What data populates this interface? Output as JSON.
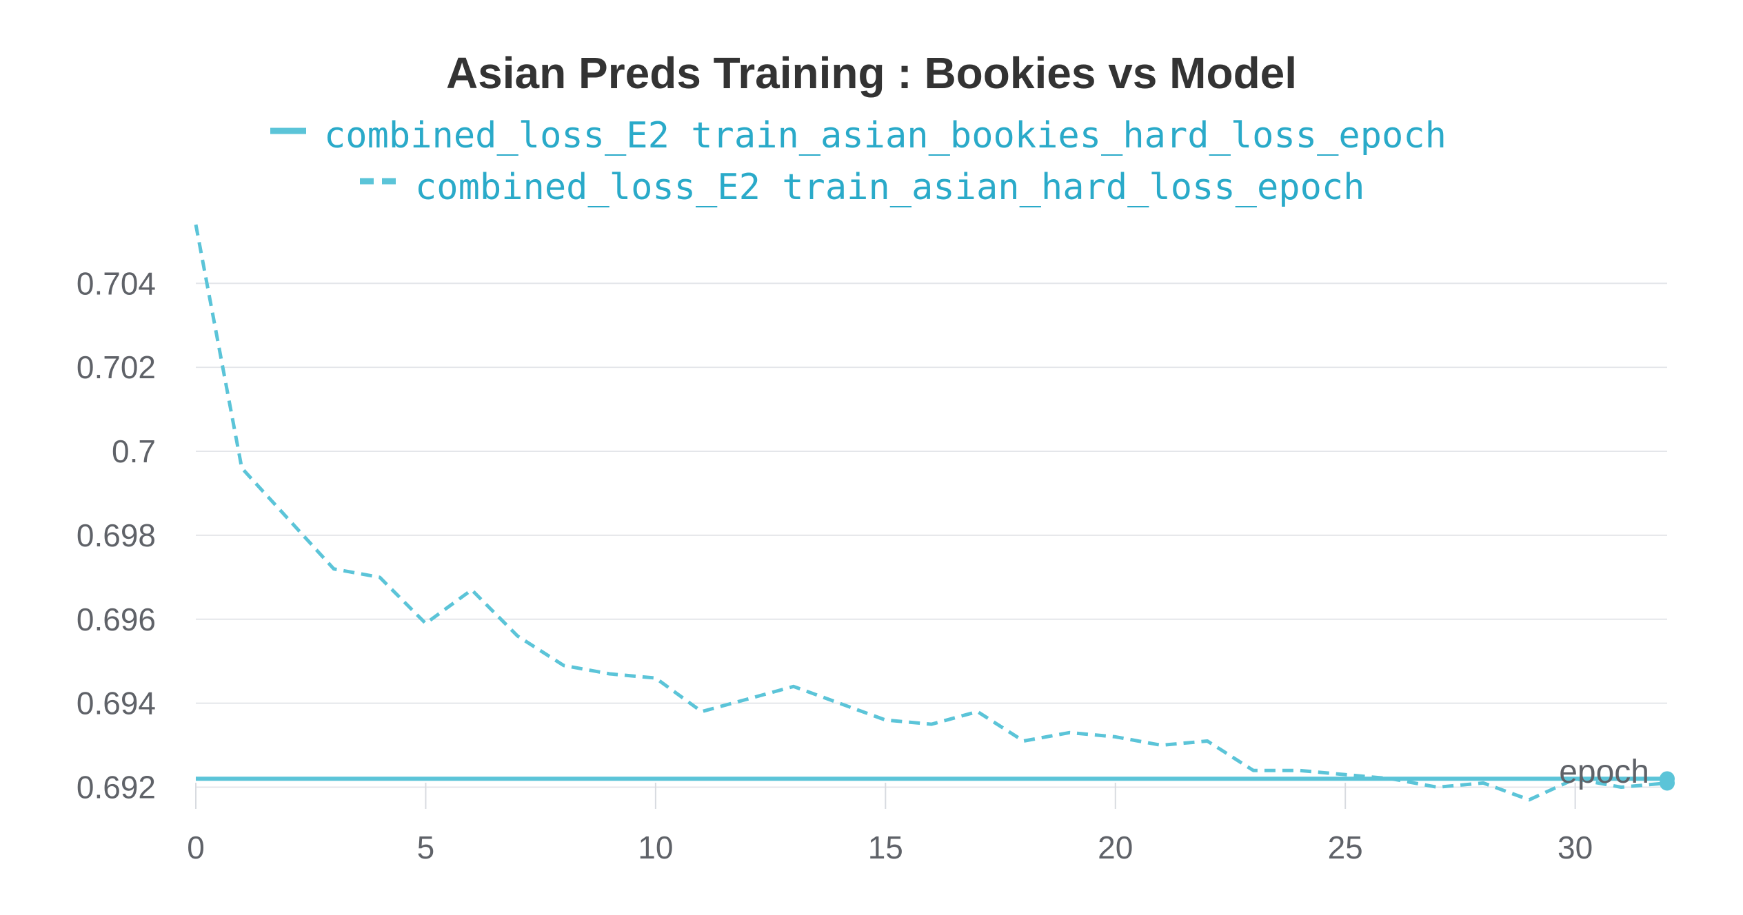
{
  "chart_data": {
    "type": "line",
    "title": "Asian Preds Training : Bookies vs Model",
    "xlabel": "epoch",
    "ylabel": "",
    "xlim": [
      0,
      32
    ],
    "ylim": [
      0.6915,
      0.7054
    ],
    "x_ticks": [
      "0",
      "5",
      "10",
      "15",
      "20",
      "25",
      "30"
    ],
    "y_ticks": [
      "0.704",
      "0.702",
      "0.7",
      "0.698",
      "0.696",
      "0.694",
      "0.692"
    ],
    "grid": true,
    "legend_position": "top-center",
    "series": [
      {
        "name": "combined_loss_E2 train_asian_bookies_hard_loss_epoch",
        "style": "solid",
        "color": "#5bc4d8",
        "x": [
          0,
          32
        ],
        "y": [
          0.6922,
          0.6922
        ]
      },
      {
        "name": "combined_loss_E2 train_asian_hard_loss_epoch",
        "style": "dashed",
        "color": "#5bc4d8",
        "x": [
          0,
          1,
          2,
          3,
          4,
          5,
          6,
          7,
          8,
          9,
          10,
          11,
          12,
          13,
          14,
          15,
          16,
          17,
          18,
          19,
          20,
          21,
          22,
          23,
          24,
          25,
          26,
          27,
          28,
          29,
          30,
          31,
          32
        ],
        "y": [
          0.7054,
          0.6996,
          0.6984,
          0.6972,
          0.697,
          0.6959,
          0.6967,
          0.6956,
          0.6949,
          0.6947,
          0.6946,
          0.6938,
          0.6941,
          0.6944,
          0.694,
          0.6936,
          0.6935,
          0.6938,
          0.6931,
          0.6933,
          0.6932,
          0.693,
          0.6931,
          0.6924,
          0.6924,
          0.6923,
          0.6922,
          0.692,
          0.6921,
          0.6917,
          0.6922,
          0.692,
          0.6921
        ]
      }
    ]
  }
}
